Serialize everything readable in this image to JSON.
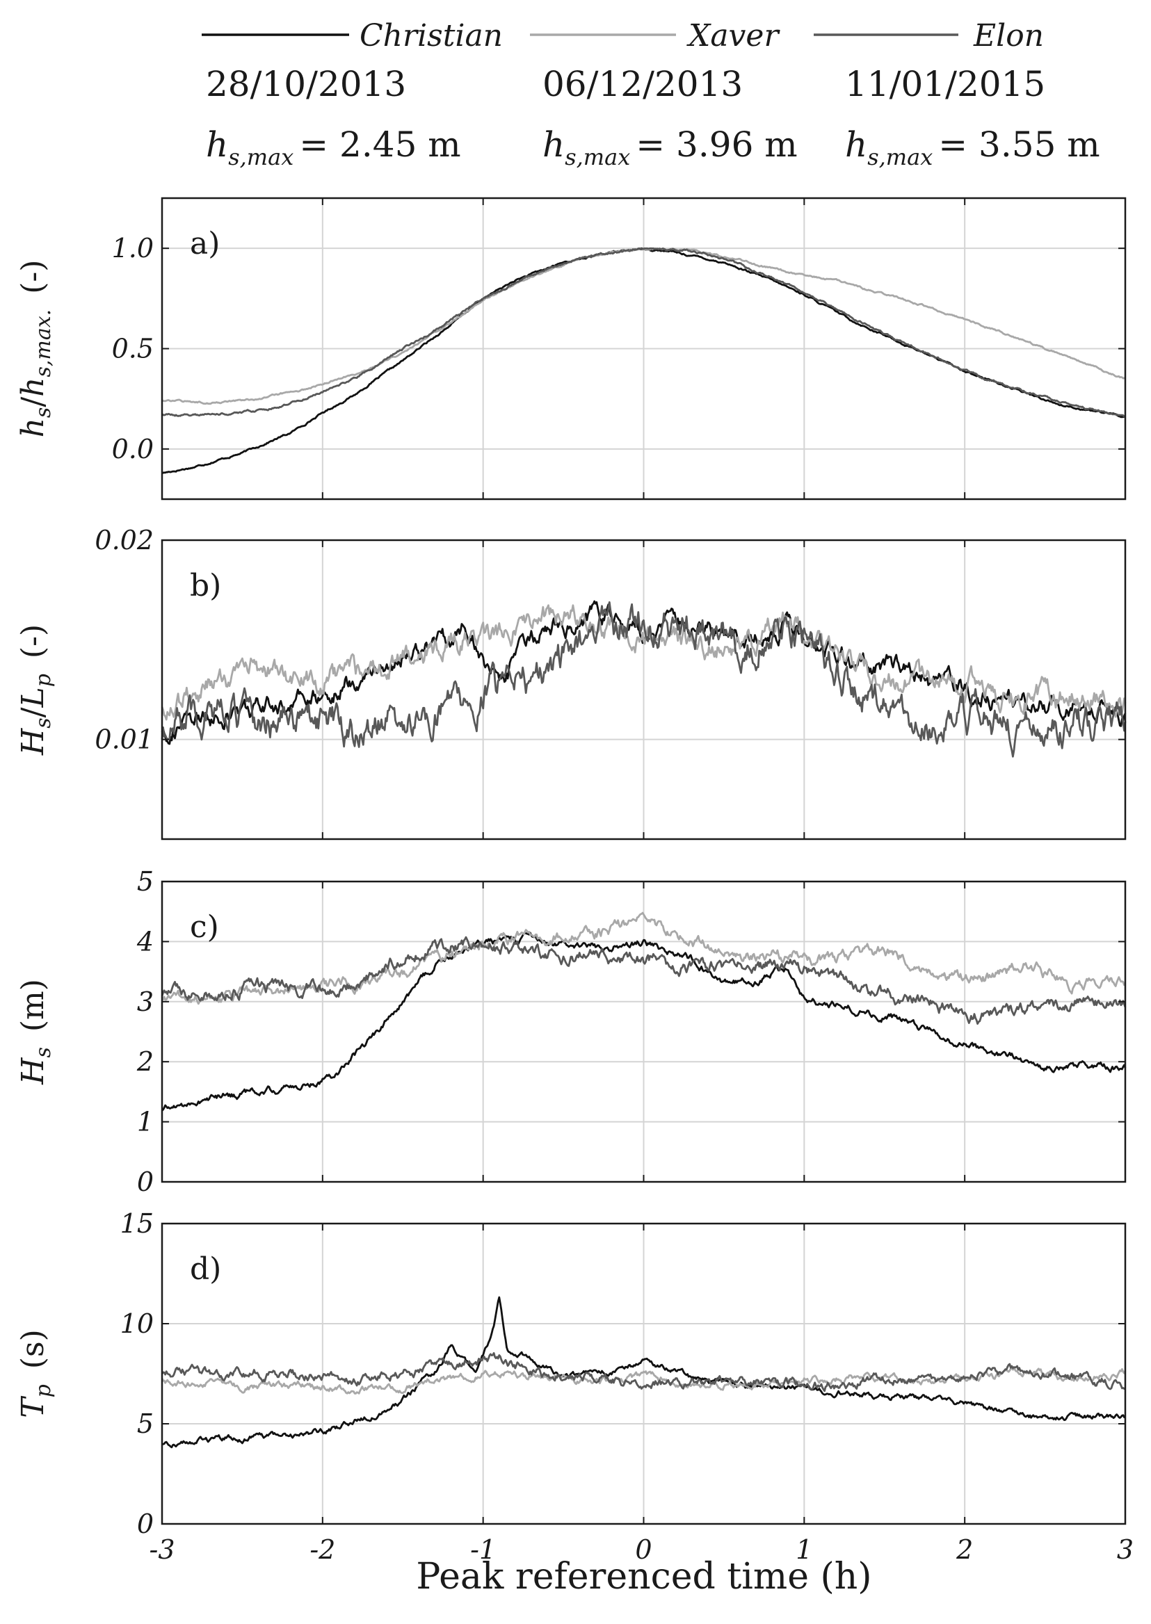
{
  "chart_data": [
    {
      "type": "line",
      "panel_label": "a)",
      "ylabel_parts": {
        "base1": "h",
        "sub1": "s",
        "slash": "/",
        "base2": "h",
        "sub2": "s,max.",
        "unit": "(-)"
      },
      "xlim": [
        -3,
        3
      ],
      "ylim": [
        -0.25,
        1.25
      ],
      "yticks": [
        0.0,
        0.5,
        1.0
      ],
      "ytick_labels": [
        "0.0",
        "0.5",
        "1.0"
      ],
      "grid": true,
      "series": [
        {
          "name": "Christian",
          "color": "#111111",
          "noise": 0.004,
          "x": [
            -3,
            -2.8,
            -2.5,
            -2.2,
            -2,
            -1.8,
            -1.5,
            -1.2,
            -1,
            -0.8,
            -0.5,
            -0.2,
            0,
            0.2,
            0.5,
            0.8,
            1,
            1.3,
            1.6,
            2,
            2.3,
            2.6,
            3
          ],
          "y": [
            -0.12,
            -0.09,
            -0.02,
            0.08,
            0.18,
            0.27,
            0.44,
            0.62,
            0.75,
            0.84,
            0.93,
            0.98,
            1.0,
            0.98,
            0.93,
            0.84,
            0.77,
            0.64,
            0.53,
            0.39,
            0.3,
            0.22,
            0.16
          ]
        },
        {
          "name": "Xaver",
          "color": "#a8a8a8",
          "noise": 0.004,
          "x": [
            -3,
            -2.7,
            -2.4,
            -2.1,
            -1.8,
            -1.5,
            -1.2,
            -1,
            -0.7,
            -0.4,
            -0.2,
            0,
            0.3,
            0.6,
            0.9,
            1.2,
            1.5,
            1.8,
            2.1,
            2.4,
            2.7,
            3
          ],
          "y": [
            0.24,
            0.23,
            0.25,
            0.3,
            0.37,
            0.48,
            0.63,
            0.74,
            0.86,
            0.95,
            0.98,
            1.0,
            0.99,
            0.94,
            0.88,
            0.84,
            0.77,
            0.7,
            0.62,
            0.53,
            0.44,
            0.35
          ]
        },
        {
          "name": "Elon",
          "color": "#585858",
          "noise": 0.005,
          "x": [
            -3,
            -2.7,
            -2.4,
            -2.1,
            -1.8,
            -1.5,
            -1.2,
            -1,
            -0.7,
            -0.4,
            -0.2,
            0,
            0.3,
            0.6,
            0.9,
            1.2,
            1.5,
            1.8,
            2.1,
            2.4,
            2.7,
            3
          ],
          "y": [
            0.17,
            0.17,
            0.19,
            0.25,
            0.35,
            0.5,
            0.64,
            0.75,
            0.87,
            0.95,
            0.98,
            1.0,
            0.99,
            0.92,
            0.82,
            0.7,
            0.57,
            0.46,
            0.36,
            0.28,
            0.21,
            0.16
          ]
        }
      ]
    },
    {
      "type": "line",
      "panel_label": "b)",
      "ylabel_parts": {
        "base1": "H",
        "sub1": "s",
        "slash": "/",
        "base2": "L",
        "sub2": "p",
        "unit": "(-)"
      },
      "xlim": [
        -3,
        3
      ],
      "ylim": [
        0.005,
        0.02
      ],
      "yticks": [
        0.01,
        0.02
      ],
      "ytick_labels": [
        "0.01",
        "0.02"
      ],
      "grid": true,
      "series": [
        {
          "name": "Christian",
          "color": "#111111",
          "noise": 0.0004,
          "x": [
            -3,
            -2.6,
            -2.2,
            -2,
            -1.7,
            -1.4,
            -1.1,
            -0.9,
            -0.6,
            -0.3,
            0,
            0.3,
            0.6,
            0.9,
            1.2,
            1.5,
            1.8,
            2.1,
            2.4,
            2.7,
            3
          ],
          "y": [
            0.0105,
            0.0112,
            0.0118,
            0.0122,
            0.0135,
            0.0145,
            0.0155,
            0.0128,
            0.0158,
            0.0162,
            0.0155,
            0.0158,
            0.0152,
            0.0158,
            0.0142,
            0.0138,
            0.0128,
            0.0122,
            0.0118,
            0.0116,
            0.0112
          ]
        },
        {
          "name": "Xaver",
          "color": "#a8a8a8",
          "noise": 0.0005,
          "x": [
            -3,
            -2.7,
            -2.4,
            -2.1,
            -1.8,
            -1.5,
            -1.2,
            -0.9,
            -0.6,
            -0.3,
            0,
            0.3,
            0.6,
            0.9,
            1.2,
            1.5,
            1.8,
            2.1,
            2.4,
            2.7,
            3
          ],
          "y": [
            0.0115,
            0.0128,
            0.0135,
            0.013,
            0.0132,
            0.0145,
            0.0148,
            0.0152,
            0.0162,
            0.0158,
            0.0152,
            0.015,
            0.0148,
            0.0162,
            0.0142,
            0.013,
            0.0128,
            0.0125,
            0.0122,
            0.012,
            0.0118
          ]
        },
        {
          "name": "Elon",
          "color": "#585858",
          "noise": 0.0007,
          "x": [
            -3,
            -2.7,
            -2.4,
            -2.1,
            -1.8,
            -1.5,
            -1.2,
            -0.9,
            -0.6,
            -0.3,
            0,
            0.3,
            0.6,
            0.9,
            1.2,
            1.5,
            1.8,
            2.1,
            2.4,
            2.7,
            3
          ],
          "y": [
            0.0105,
            0.0118,
            0.0108,
            0.0112,
            0.0105,
            0.0112,
            0.0118,
            0.0125,
            0.0135,
            0.0152,
            0.0158,
            0.0155,
            0.0148,
            0.0158,
            0.0135,
            0.0118,
            0.0108,
            0.0112,
            0.0102,
            0.0108,
            0.011
          ]
        }
      ]
    },
    {
      "type": "line",
      "panel_label": "c)",
      "ylabel_parts": {
        "base1": "H",
        "sub1": "s",
        "unit": "(m)"
      },
      "xlim": [
        -3,
        3
      ],
      "ylim": [
        0,
        5
      ],
      "yticks": [
        0,
        1,
        2,
        3,
        4,
        5
      ],
      "ytick_labels": [
        "0",
        "1",
        "2",
        "3",
        "4",
        "5"
      ],
      "grid": true,
      "series": [
        {
          "name": "Christian",
          "color": "#111111",
          "noise": 0.05,
          "x": [
            -3,
            -2.7,
            -2.4,
            -2.1,
            -1.9,
            -1.7,
            -1.5,
            -1.3,
            -1.1,
            -0.9,
            -0.7,
            -0.5,
            -0.3,
            -0.1,
            0,
            0.3,
            0.5,
            0.7,
            0.9,
            1,
            1.3,
            1.6,
            1.9,
            2.2,
            2.5,
            2.8,
            3
          ],
          "y": [
            1.2,
            1.4,
            1.5,
            1.6,
            1.85,
            2.4,
            3.0,
            3.6,
            3.9,
            4.0,
            4.05,
            3.95,
            3.9,
            3.95,
            4.0,
            3.7,
            3.3,
            3.35,
            3.6,
            3.05,
            2.9,
            2.7,
            2.35,
            2.15,
            1.9,
            1.95,
            1.9
          ]
        },
        {
          "name": "Xaver",
          "color": "#a8a8a8",
          "noise": 0.08,
          "x": [
            -3,
            -2.7,
            -2.4,
            -2.1,
            -1.8,
            -1.5,
            -1.2,
            -0.9,
            -0.6,
            -0.3,
            0,
            0.3,
            0.6,
            0.9,
            1.2,
            1.5,
            1.8,
            2.1,
            2.4,
            2.7,
            3
          ],
          "y": [
            3.05,
            3.1,
            3.15,
            3.25,
            3.3,
            3.5,
            3.8,
            4.1,
            4.05,
            4.15,
            4.35,
            4.0,
            3.8,
            3.75,
            3.7,
            3.85,
            3.45,
            3.35,
            3.6,
            3.25,
            3.35
          ]
        },
        {
          "name": "Elon",
          "color": "#585858",
          "noise": 0.09,
          "x": [
            -3,
            -2.7,
            -2.4,
            -2.1,
            -1.8,
            -1.5,
            -1.2,
            -0.9,
            -0.6,
            -0.3,
            0,
            0.3,
            0.6,
            0.9,
            1.2,
            1.5,
            1.8,
            2.1,
            2.4,
            2.7,
            3
          ],
          "y": [
            3.15,
            3.1,
            3.25,
            3.2,
            3.25,
            3.8,
            3.95,
            3.95,
            3.75,
            3.8,
            3.7,
            3.55,
            3.6,
            3.6,
            3.4,
            3.15,
            2.95,
            2.75,
            2.9,
            3.0,
            2.95
          ]
        }
      ]
    },
    {
      "type": "line",
      "panel_label": "d)",
      "ylabel_parts": {
        "base1": "T",
        "sub1": "p",
        "unit": "(s)"
      },
      "xlabel": "Peak referenced time (h)",
      "xlim": [
        -3,
        3
      ],
      "ylim": [
        0,
        15
      ],
      "yticks": [
        0,
        5,
        10,
        15
      ],
      "ytick_labels": [
        "0",
        "5",
        "10",
        "15"
      ],
      "xticks": [
        -3,
        -2,
        -1,
        0,
        1,
        2,
        3
      ],
      "xtick_labels": [
        "-3",
        "-2",
        "-1",
        "0",
        "1",
        "2",
        "3"
      ],
      "grid": true,
      "series": [
        {
          "name": "Christian",
          "color": "#111111",
          "noise": 0.12,
          "x": [
            -3,
            -2.7,
            -2.4,
            -2.1,
            -1.9,
            -1.7,
            -1.5,
            -1.3,
            -1.2,
            -1.05,
            -0.95,
            -0.9,
            -0.85,
            -0.7,
            -0.5,
            -0.3,
            -0.1,
            0,
            0.3,
            0.6,
            0.9,
            1.2,
            1.5,
            1.8,
            2.1,
            2.4,
            2.7,
            3
          ],
          "y": [
            4.0,
            4.2,
            4.3,
            4.5,
            4.8,
            5.4,
            6.2,
            7.6,
            8.8,
            7.5,
            9.5,
            11.2,
            8.8,
            8.2,
            7.4,
            7.5,
            7.8,
            8.2,
            7.3,
            6.9,
            6.8,
            6.6,
            6.4,
            6.2,
            5.8,
            5.3,
            5.4,
            5.4
          ]
        },
        {
          "name": "Xaver",
          "color": "#a8a8a8",
          "noise": 0.15,
          "x": [
            -3,
            -2.7,
            -2.4,
            -2.1,
            -1.8,
            -1.5,
            -1.2,
            -0.9,
            -0.6,
            -0.3,
            0,
            0.3,
            0.6,
            0.9,
            1.2,
            1.5,
            1.8,
            2.1,
            2.4,
            2.7,
            3
          ],
          "y": [
            7.2,
            7.0,
            6.8,
            6.9,
            6.7,
            6.8,
            7.3,
            7.6,
            7.2,
            7.1,
            7.3,
            7.0,
            6.9,
            7.1,
            7.2,
            7.4,
            7.1,
            7.3,
            7.6,
            7.2,
            7.6
          ]
        },
        {
          "name": "Elon",
          "color": "#585858",
          "noise": 0.2,
          "x": [
            -3,
            -2.7,
            -2.4,
            -2.1,
            -1.8,
            -1.5,
            -1.2,
            -0.9,
            -0.6,
            -0.3,
            0,
            0.3,
            0.6,
            0.9,
            1.2,
            1.5,
            1.8,
            2.1,
            2.4,
            2.7,
            3
          ],
          "y": [
            7.6,
            7.5,
            7.6,
            7.4,
            7.2,
            7.5,
            8.1,
            8.3,
            7.4,
            7.2,
            7.1,
            7.0,
            7.1,
            7.0,
            6.9,
            7.3,
            7.1,
            7.5,
            7.6,
            7.3,
            6.9
          ]
        }
      ]
    }
  ],
  "legend": {
    "placement": "top",
    "entries": [
      {
        "name": "Christian",
        "color": "#111111",
        "date": "28/10/2013",
        "hs_base": "h",
        "hs_sub": "s,max",
        "hs_value": "= 2.45 m"
      },
      {
        "name": "Xaver",
        "color": "#a8a8a8",
        "date": "06/12/2013",
        "hs_base": "h",
        "hs_sub": "s,max",
        "hs_value": "= 3.96 m"
      },
      {
        "name": "Elon",
        "color": "#585858",
        "date": "11/01/2015",
        "hs_base": "h",
        "hs_sub": "s,max",
        "hs_value": "= 3.55 m"
      }
    ]
  }
}
